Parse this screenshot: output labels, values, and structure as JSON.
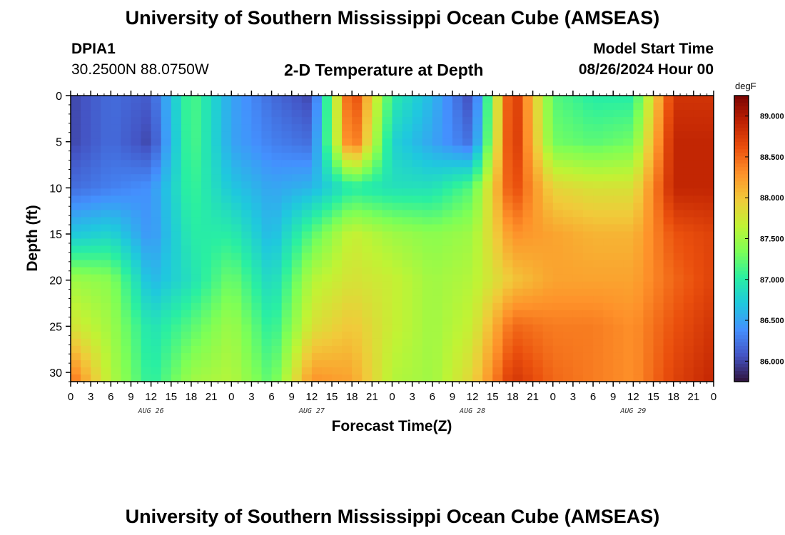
{
  "header": {
    "title": "University of Southern Mississippi Ocean Cube (AMSEAS)",
    "station_id": "DPIA1",
    "station_coords": "30.2500N  88.0750W",
    "model_start_label": "Model Start Time",
    "model_start_value": "08/26/2024 Hour 00"
  },
  "footer": {
    "title": "University of Southern Mississippi Ocean Cube (AMSEAS)"
  },
  "chart_data": {
    "type": "heatmap",
    "title": "2-D Temperature at Depth",
    "xlabel": "Forecast Time(Z)",
    "ylabel": "Depth (ft)",
    "colorbar_label": "degF",
    "x_tick_labels": [
      "0",
      "3",
      "6",
      "9",
      "12",
      "15",
      "18",
      "21",
      "0",
      "3",
      "6",
      "9",
      "12",
      "15",
      "18",
      "21",
      "0",
      "3",
      "6",
      "9",
      "12",
      "15",
      "18",
      "21",
      "0",
      "3",
      "6",
      "9",
      "12",
      "15",
      "18",
      "21",
      "0"
    ],
    "day_labels": [
      "AUG 26",
      "AUG 27",
      "AUG 28",
      "AUG 29"
    ],
    "y_ticks": [
      0,
      5,
      10,
      15,
      20,
      25,
      30
    ],
    "ylim": [
      31,
      0
    ],
    "x_range_hours": [
      0,
      96
    ],
    "colorbar_range": [
      85.75,
      89.25
    ],
    "colorbar_ticks": [
      "86.000",
      "86.500",
      "87.000",
      "87.500",
      "88.000",
      "88.500",
      "89.000"
    ],
    "colormap": [
      "#30123b",
      "#4454c4",
      "#4490fe",
      "#1fc8de",
      "#29efa2",
      "#7dff56",
      "#c1f334",
      "#f1ca3a",
      "#fe922a",
      "#ea4f0d",
      "#be2102",
      "#7a0403"
    ],
    "depths_ft": [
      0,
      5,
      10,
      15,
      20,
      25,
      31
    ],
    "hours": [
      0,
      6,
      12,
      18,
      24,
      30,
      36,
      42,
      48,
      54,
      60,
      66,
      72,
      78,
      84,
      90,
      96
    ],
    "temperature_degF": [
      [
        86.0,
        86.2,
        86.1,
        87.2,
        86.5,
        86.2,
        86.0,
        88.8,
        87.0,
        86.6,
        86.0,
        88.9,
        87.2,
        87.0,
        87.0,
        88.8,
        88.8
      ],
      [
        86.0,
        86.2,
        86.0,
        87.2,
        86.5,
        86.3,
        86.2,
        88.6,
        86.8,
        86.5,
        86.2,
        88.9,
        87.3,
        87.2,
        87.3,
        88.9,
        88.9
      ],
      [
        86.2,
        86.3,
        86.4,
        87.1,
        86.7,
        86.5,
        86.6,
        87.0,
        86.9,
        86.9,
        87.2,
        88.7,
        87.9,
        87.8,
        87.8,
        88.9,
        88.9
      ],
      [
        86.7,
        86.8,
        86.4,
        87.0,
        87.0,
        86.6,
        87.2,
        87.7,
        87.5,
        87.4,
        87.5,
        88.3,
        88.2,
        88.1,
        88.1,
        88.6,
        88.7
      ],
      [
        87.5,
        87.4,
        86.6,
        86.9,
        87.3,
        86.8,
        87.6,
        87.8,
        87.7,
        87.5,
        87.6,
        88.0,
        88.2,
        88.2,
        88.2,
        88.5,
        88.7
      ],
      [
        87.8,
        87.5,
        86.9,
        87.2,
        87.5,
        87.0,
        87.8,
        88.0,
        87.7,
        87.5,
        87.7,
        88.5,
        88.4,
        88.4,
        88.3,
        88.6,
        88.8
      ],
      [
        88.5,
        87.6,
        87.0,
        87.5,
        87.6,
        87.2,
        88.3,
        88.2,
        87.6,
        87.5,
        87.9,
        88.8,
        88.5,
        88.4,
        88.3,
        88.7,
        88.9
      ]
    ]
  }
}
